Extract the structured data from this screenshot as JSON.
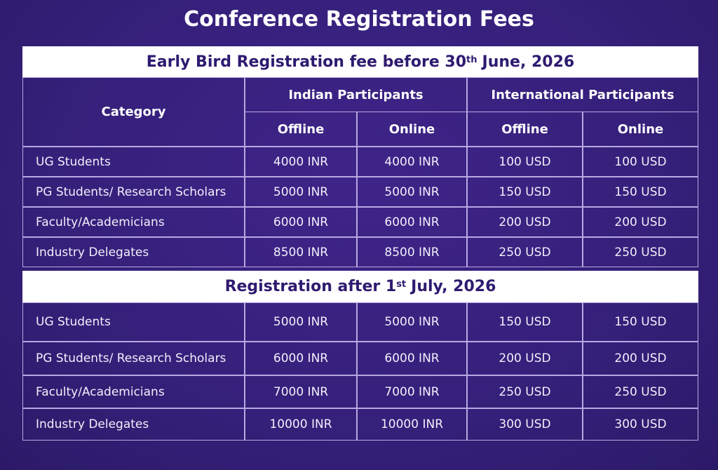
{
  "title": "Conference Registration Fees",
  "table": {
    "header": {
      "category": "Category",
      "groups": [
        "Indian Participants",
        "International Participants"
      ],
      "modes": [
        "Offline",
        "Online",
        "Offline",
        "Online"
      ]
    },
    "sections": [
      {
        "heading": {
          "before": "Early Bird Registration fee before 30",
          "sup": "th",
          "after": "June, 2026"
        },
        "rows": [
          [
            "UG Students",
            "4000 INR",
            "4000 INR",
            "100 USD",
            "100 USD"
          ],
          [
            "PG Students/ Research Scholars",
            "5000 INR",
            "5000 INR",
            "150 USD",
            "150 USD"
          ],
          [
            "Faculty/Academicians",
            "6000 INR",
            "6000 INR",
            "200 USD",
            "200 USD"
          ],
          [
            "Industry Delegates",
            "8500 INR",
            "8500 INR",
            "250 USD",
            "250 USD"
          ]
        ]
      },
      {
        "heading": {
          "before": "Registration after 1",
          "sup": "st",
          "after": "July, 2026"
        },
        "rows": [
          [
            "UG Students",
            "5000 INR",
            "5000 INR",
            "150 USD",
            "150 USD"
          ],
          [
            "PG Students/ Research Scholars",
            "6000 INR",
            "6000 INR",
            "200 USD",
            "200 USD"
          ],
          [
            "Faculty/Academicians",
            "7000 INR",
            "7000 INR",
            "250 USD",
            "250 USD"
          ],
          [
            "Industry Delegates",
            "10000 INR",
            "10000 INR",
            "300 USD",
            "300 USD"
          ]
        ]
      }
    ]
  }
}
